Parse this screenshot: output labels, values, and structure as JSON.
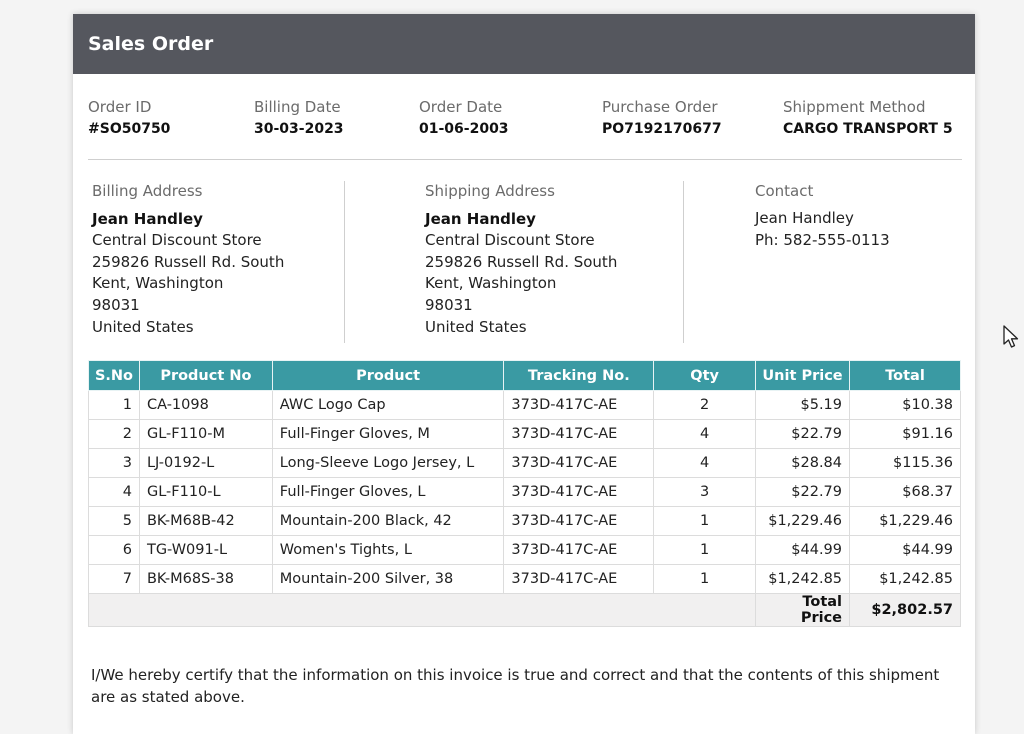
{
  "header": {
    "title": "Sales Order"
  },
  "meta": [
    {
      "label": "Order ID",
      "value": "#SO50750"
    },
    {
      "label": "Billing Date",
      "value": "30-03-2023"
    },
    {
      "label": "Order Date",
      "value": "01-06-2003"
    },
    {
      "label": "Purchase Order",
      "value": "PO7192170677"
    },
    {
      "label": "Shippment Method",
      "value": "CARGO TRANSPORT 5"
    }
  ],
  "billing": {
    "label": "Billing Address",
    "name": "Jean Handley",
    "lines": [
      "Central Discount Store",
      "259826 Russell Rd. South",
      "Kent, Washington",
      "98031",
      "United States"
    ]
  },
  "shipping": {
    "label": "Shipping Address",
    "name": "Jean Handley",
    "lines": [
      "Central Discount Store",
      "259826 Russell Rd. South",
      "Kent, Washington",
      "98031",
      "United States"
    ]
  },
  "contact": {
    "label": "Contact",
    "lines": [
      "Jean Handley",
      "Ph: 582-555-0113"
    ]
  },
  "table": {
    "headers": [
      "S.No",
      "Product No",
      "Product",
      "Tracking No.",
      "Qty",
      "Unit Price",
      "Total"
    ],
    "rows": [
      [
        "1",
        "CA-1098",
        "AWC Logo Cap",
        "373D-417C-AE",
        "2",
        "$5.19",
        "$10.38"
      ],
      [
        "2",
        "GL-F110-M",
        "Full-Finger Gloves, M",
        "373D-417C-AE",
        "4",
        "$22.79",
        "$91.16"
      ],
      [
        "3",
        "LJ-0192-L",
        "Long-Sleeve Logo Jersey, L",
        "373D-417C-AE",
        "4",
        "$28.84",
        "$115.36"
      ],
      [
        "4",
        "GL-F110-L",
        "Full-Finger Gloves, L",
        "373D-417C-AE",
        "3",
        "$22.79",
        "$68.37"
      ],
      [
        "5",
        "BK-M68B-42",
        "Mountain-200 Black, 42",
        "373D-417C-AE",
        "1",
        "$1,229.46",
        "$1,229.46"
      ],
      [
        "6",
        "TG-W091-L",
        "Women's Tights, L",
        "373D-417C-AE",
        "1",
        "$44.99",
        "$44.99"
      ],
      [
        "7",
        "BK-M68S-38",
        "Mountain-200 Silver, 38",
        "373D-417C-AE",
        "1",
        "$1,242.85",
        "$1,242.85"
      ]
    ],
    "total_label": "Total Price",
    "total_value": "$2,802.57"
  },
  "certification": "I/We hereby certify that the information on this invoice is true and correct and that the contents of this shipment are as stated above.",
  "colors": {
    "header_bg": "#55575e",
    "table_header_bg": "#3a9aa3"
  },
  "icons": {
    "cursor": "mouse-pointer-icon"
  }
}
